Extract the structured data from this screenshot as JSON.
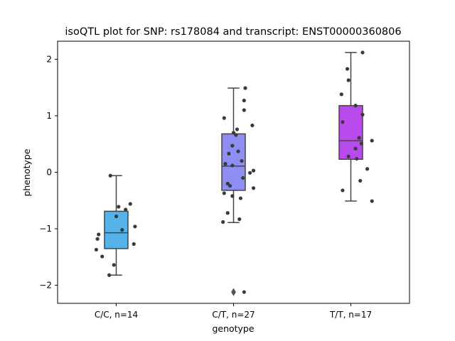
{
  "chart_data": {
    "type": "box",
    "title": "isoQTL plot for SNP: rs178084 and transcript: ENST00000360806",
    "xlabel": "genotype",
    "ylabel": "phenotype",
    "ylim": [
      -2.32,
      2.32
    ],
    "yticks": [
      -2,
      -1,
      0,
      1,
      2
    ],
    "ytick_labels": [
      "−2",
      "−1",
      "0",
      "1",
      "2"
    ],
    "grid": false,
    "categories": [
      "C/C, n=14",
      "C/T, n=27",
      "T/T, n=17"
    ],
    "colors": [
      "#56b3e9",
      "#8c8ef2",
      "#b94bec"
    ],
    "boxes": [
      {
        "category": "C/C, n=14",
        "q1": -1.35,
        "median": -1.07,
        "q3": -0.69,
        "whisker_low": -1.82,
        "whisker_high": -0.06,
        "outliers": []
      },
      {
        "category": "C/T, n=27",
        "q1": -0.32,
        "median": 0.11,
        "q3": 0.68,
        "whisker_low": -0.89,
        "whisker_high": 1.49,
        "outliers": [
          -2.12
        ]
      },
      {
        "category": "T/T, n=17",
        "q1": 0.23,
        "median": 0.56,
        "q3": 1.18,
        "whisker_low": -0.51,
        "whisker_high": 2.12,
        "outliers": []
      }
    ],
    "points": [
      [
        [
          0.95,
          -0.06
        ],
        [
          1.12,
          -0.56
        ],
        [
          1.02,
          -0.61
        ],
        [
          1.08,
          -0.66
        ],
        [
          1.0,
          -0.78
        ],
        [
          1.16,
          -0.96
        ],
        [
          1.05,
          -1.02
        ],
        [
          0.85,
          -1.1
        ],
        [
          0.84,
          -1.18
        ],
        [
          1.15,
          -1.27
        ],
        [
          0.83,
          -1.37
        ],
        [
          0.88,
          -1.49
        ],
        [
          0.98,
          -1.64
        ],
        [
          0.94,
          -1.82
        ]
      ],
      [
        [
          1.92,
          0.96
        ],
        [
          2.1,
          1.49
        ],
        [
          2.09,
          1.27
        ],
        [
          2.09,
          1.1
        ],
        [
          2.16,
          0.83
        ],
        [
          2.03,
          0.76
        ],
        [
          2.0,
          0.7
        ],
        [
          2.02,
          0.66
        ],
        [
          1.99,
          0.47
        ],
        [
          2.04,
          0.37
        ],
        [
          1.96,
          0.33
        ],
        [
          2.07,
          0.2
        ],
        [
          1.93,
          0.15
        ],
        [
          1.99,
          0.12
        ],
        [
          2.17,
          0.03
        ],
        [
          2.14,
          -0.01
        ],
        [
          2.08,
          -0.1
        ],
        [
          1.95,
          -0.2
        ],
        [
          1.97,
          -0.24
        ],
        [
          2.17,
          -0.28
        ],
        [
          1.92,
          -0.37
        ],
        [
          1.99,
          -0.42
        ],
        [
          2.06,
          -0.46
        ],
        [
          1.95,
          -0.72
        ],
        [
          2.05,
          -0.83
        ],
        [
          1.91,
          -0.88
        ],
        [
          2.09,
          -2.12
        ]
      ],
      [
        [
          3.1,
          2.12
        ],
        [
          2.97,
          1.83
        ],
        [
          2.98,
          1.63
        ],
        [
          2.92,
          1.38
        ],
        [
          3.04,
          1.18
        ],
        [
          3.1,
          1.02
        ],
        [
          2.93,
          0.89
        ],
        [
          3.07,
          0.61
        ],
        [
          3.18,
          0.56
        ],
        [
          3.09,
          0.51
        ],
        [
          3.04,
          0.42
        ],
        [
          2.98,
          0.28
        ],
        [
          3.05,
          0.24
        ],
        [
          3.14,
          0.06
        ],
        [
          3.08,
          -0.15
        ],
        [
          2.93,
          -0.32
        ],
        [
          3.18,
          -0.51
        ]
      ]
    ]
  }
}
